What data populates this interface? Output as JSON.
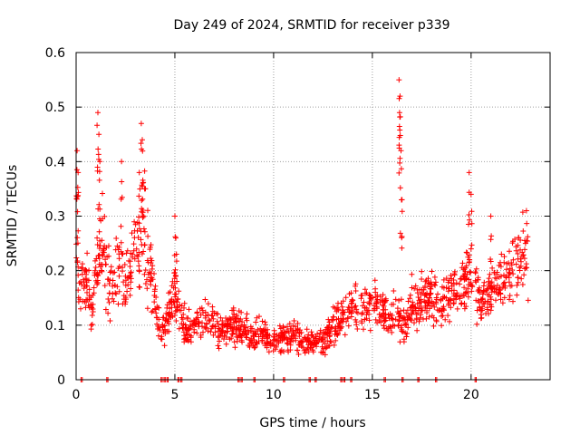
{
  "chart_data": {
    "type": "scatter",
    "title": "Day 249 of 2024, SRMTID for receiver p339",
    "xlabel": "GPS time / hours",
    "ylabel": "SRMTID / TECUs",
    "xlim": [
      0,
      24.0
    ],
    "ylim": [
      0,
      0.6
    ],
    "xticks": [
      0,
      5,
      10,
      15,
      20
    ],
    "xtick_labels": [
      "0",
      "5",
      "10",
      "15",
      "20"
    ],
    "yticks": [
      0,
      0.1,
      0.2,
      0.3,
      0.4,
      0.5,
      0.6
    ],
    "ytick_labels": [
      "0",
      "0.1",
      "0.2",
      "0.3",
      "0.4",
      "0.5",
      "0.6"
    ],
    "grid": true,
    "marker": "plus",
    "color": "#ff0000",
    "series": [
      {
        "name": "SRMTID",
        "profile": {
          "x": [
            0.0,
            0.1,
            0.2,
            0.4,
            0.6,
            0.8,
            1.0,
            1.2,
            1.4,
            1.6,
            1.8,
            2.0,
            2.2,
            2.4,
            2.6,
            2.8,
            3.0,
            3.2,
            3.4,
            3.6,
            3.8,
            4.0,
            4.2,
            4.5,
            4.8,
            5.0,
            5.3,
            5.6,
            6.0,
            6.5,
            7.0,
            7.5,
            8.0,
            8.5,
            9.0,
            9.5,
            10.0,
            10.5,
            11.0,
            11.5,
            12.0,
            12.5,
            13.0,
            13.5,
            14.0,
            14.5,
            15.0,
            15.5,
            16.0,
            16.3,
            16.6,
            17.0,
            17.5,
            18.0,
            18.5,
            19.0,
            19.5,
            20.0,
            20.5,
            21.0,
            21.5,
            22.0,
            22.5,
            22.9
          ],
          "y": [
            0.3,
            0.22,
            0.16,
            0.19,
            0.16,
            0.12,
            0.2,
            0.22,
            0.24,
            0.19,
            0.16,
            0.2,
            0.24,
            0.17,
            0.18,
            0.2,
            0.27,
            0.22,
            0.3,
            0.24,
            0.18,
            0.14,
            0.1,
            0.1,
            0.13,
            0.17,
            0.12,
            0.09,
            0.1,
            0.12,
            0.1,
            0.09,
            0.1,
            0.09,
            0.08,
            0.08,
            0.07,
            0.08,
            0.08,
            0.07,
            0.07,
            0.07,
            0.1,
            0.12,
            0.13,
            0.13,
            0.14,
            0.13,
            0.11,
            0.12,
            0.1,
            0.13,
            0.15,
            0.15,
            0.14,
            0.16,
            0.17,
            0.2,
            0.14,
            0.16,
            0.18,
            0.2,
            0.22,
            0.24
          ]
        },
        "spikes": [
          {
            "x": 0.05,
            "y": 0.42
          },
          {
            "x": 0.1,
            "y": 0.38
          },
          {
            "x": 1.1,
            "y": 0.49
          },
          {
            "x": 1.15,
            "y": 0.45
          },
          {
            "x": 1.2,
            "y": 0.4
          },
          {
            "x": 2.3,
            "y": 0.4
          },
          {
            "x": 3.3,
            "y": 0.47
          },
          {
            "x": 3.35,
            "y": 0.44
          },
          {
            "x": 3.2,
            "y": 0.38
          },
          {
            "x": 5.0,
            "y": 0.3
          },
          {
            "x": 5.05,
            "y": 0.26
          },
          {
            "x": 16.35,
            "y": 0.55
          },
          {
            "x": 16.4,
            "y": 0.52
          },
          {
            "x": 16.38,
            "y": 0.49
          },
          {
            "x": 16.45,
            "y": 0.42
          },
          {
            "x": 16.5,
            "y": 0.33
          },
          {
            "x": 19.9,
            "y": 0.38
          },
          {
            "x": 20.0,
            "y": 0.34
          },
          {
            "x": 21.0,
            "y": 0.3
          },
          {
            "x": 22.8,
            "y": 0.31
          }
        ],
        "zero_markers": [
          0.25,
          1.55,
          4.3,
          4.45,
          4.6,
          5.15,
          5.3,
          8.2,
          8.35,
          9.0,
          10.5,
          11.8,
          12.1,
          13.4,
          13.55,
          13.9,
          15.6,
          16.5,
          17.3,
          18.2,
          20.2
        ]
      }
    ]
  }
}
